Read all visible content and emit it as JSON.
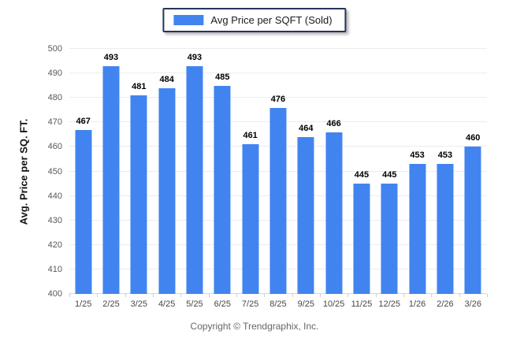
{
  "chart_data": {
    "type": "bar",
    "title": "",
    "series_name": "Avg Price per SQFT (Sold)",
    "categories": [
      "1/25",
      "2/25",
      "3/25",
      "4/25",
      "5/25",
      "6/25",
      "7/25",
      "8/25",
      "9/25",
      "10/25",
      "11/25",
      "12/25",
      "1/26",
      "2/26",
      "3/26"
    ],
    "values": [
      467,
      493,
      481,
      484,
      493,
      485,
      461,
      476,
      464,
      466,
      445,
      445,
      453,
      453,
      460
    ],
    "xlabel": "",
    "ylabel": "Avg. Price per SQ. FT.",
    "ylim": [
      400,
      500
    ],
    "ytick_step": 10,
    "grid": true,
    "legend_position": "top-center",
    "value_labels": true
  },
  "legend": {
    "label": "Avg Price per SQFT (Sold)"
  },
  "footer": {
    "copyright": "Copyright © Trendgraphix, Inc."
  },
  "colors": {
    "bar": "#4184f0",
    "grid": "#ececec",
    "baseline": "#d6d6d6",
    "legend_border": "#24355a"
  }
}
